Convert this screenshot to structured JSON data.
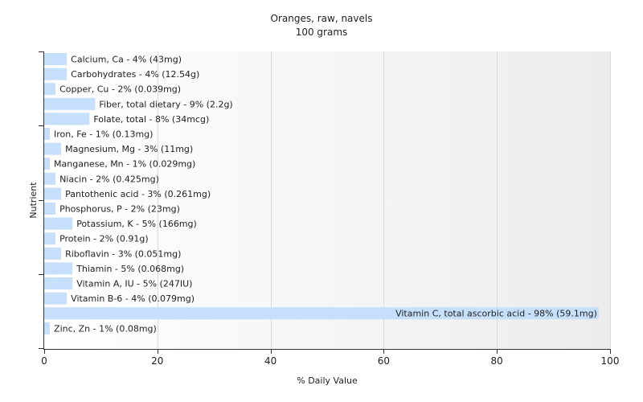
{
  "chart_data": {
    "type": "bar",
    "orientation": "horizontal",
    "title": "Oranges, raw, navels",
    "subtitle": "100 grams",
    "xlabel": "% Daily Value",
    "ylabel": "Nutrient",
    "xlim": [
      0,
      100
    ],
    "xticks": [
      "0",
      "20",
      "40",
      "60",
      "80",
      "100"
    ],
    "grid": true,
    "legend": "none",
    "bar_color": "#c6dffb",
    "categories": [
      "Calcium, Ca",
      "Carbohydrates",
      "Copper, Cu",
      "Fiber, total dietary",
      "Folate, total",
      "Iron, Fe",
      "Magnesium, Mg",
      "Manganese, Mn",
      "Niacin",
      "Pantothenic acid",
      "Phosphorus, P",
      "Potassium, K",
      "Protein",
      "Riboflavin",
      "Thiamin",
      "Vitamin A, IU",
      "Vitamin B-6",
      "Vitamin C, total ascorbic acid",
      "Zinc, Zn"
    ],
    "values": [
      4,
      4,
      2,
      9,
      8,
      1,
      3,
      1,
      2,
      3,
      2,
      5,
      2,
      3,
      5,
      5,
      4,
      98,
      1
    ],
    "labels": [
      "Calcium, Ca - 4% (43mg)",
      "Carbohydrates - 4% (12.54g)",
      "Copper, Cu - 2% (0.039mg)",
      "Fiber, total dietary - 9% (2.2g)",
      "Folate, total - 8% (34mcg)",
      "Iron, Fe - 1% (0.13mg)",
      "Magnesium, Mg - 3% (11mg)",
      "Manganese, Mn - 1% (0.029mg)",
      "Niacin - 2% (0.425mg)",
      "Pantothenic acid - 3% (0.261mg)",
      "Phosphorus, P - 2% (23mg)",
      "Potassium, K - 5% (166mg)",
      "Protein - 2% (0.91g)",
      "Riboflavin - 3% (0.051mg)",
      "Thiamin - 5% (0.068mg)",
      "Vitamin A, IU - 5% (247IU)",
      "Vitamin B-6 - 4% (0.079mg)",
      "Vitamin C, total ascorbic acid - 98% (59.1mg)",
      "Zinc, Zn - 1% (0.08mg)"
    ]
  }
}
